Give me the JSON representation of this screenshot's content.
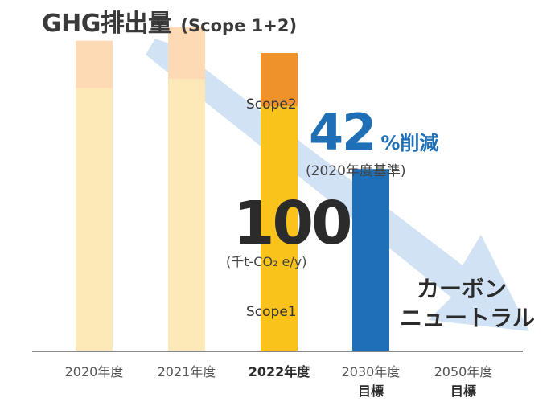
{
  "title": {
    "main": "GHG排出量",
    "sub": "(Scope 1+2)"
  },
  "chart_data": {
    "type": "bar",
    "stacked": true,
    "categories": [
      "2020年度",
      "2021年度",
      "2022年度",
      "2030年度",
      "2050年度"
    ],
    "category_sublabels": [
      "",
      "",
      "",
      "目標",
      "目標"
    ],
    "series": [
      {
        "name": "Scope1",
        "values": [
          172,
          178,
          160,
          119,
          0
        ]
      },
      {
        "name": "Scope2",
        "values": [
          31,
          34,
          35,
          0,
          0
        ]
      }
    ],
    "highlight_category": "2022年度",
    "ylim": [
      0,
      215
    ],
    "grid": false,
    "legend": "none",
    "colors": {
      "scope1_past": "#fde9b8",
      "scope2_past": "#fdd9b4",
      "scope1_2022": "#f9c31b",
      "scope2_2022": "#f0922a",
      "target_2030": "#1f6fb6",
      "arrow": "#c9ddf2",
      "axis": "#444444"
    },
    "annotations": {
      "reduction_value": "42",
      "reduction_unit": "%削減",
      "reduction_basis": "(2020年度基準)",
      "big_value": "100",
      "big_value_unit": "(千t-CO₂ e/y)",
      "scope2_label": "Scope2",
      "scope1_label": "Scope1",
      "carbon_neutral_line1": "カーボン",
      "carbon_neutral_line2": "ニュートラル"
    }
  }
}
